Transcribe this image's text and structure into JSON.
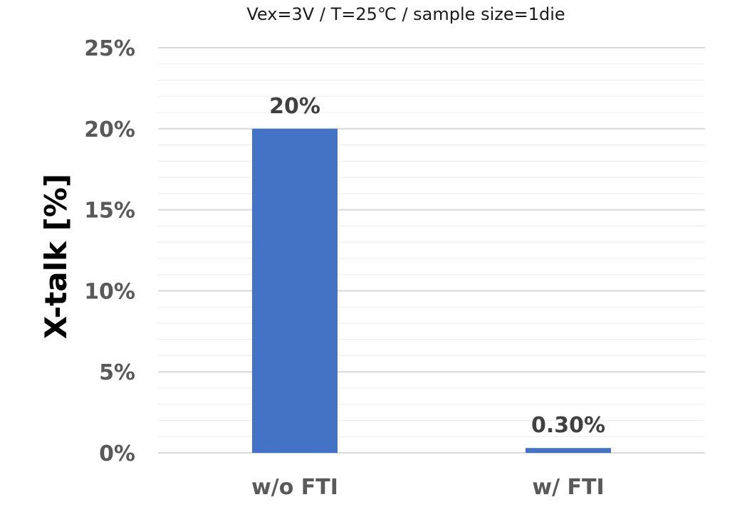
{
  "chart_data": {
    "type": "bar",
    "title": "Vex=3V / T=25℃ / sample size=1die",
    "xlabel": "",
    "ylabel": "X-talk [%]",
    "categories": [
      "w/o FTI",
      "w/ FTI"
    ],
    "values": [
      20,
      0.3
    ],
    "data_labels": [
      "20%",
      "0.30%"
    ],
    "ylim": [
      0,
      25
    ],
    "yticks": [
      0,
      5,
      10,
      15,
      20,
      25
    ],
    "ytick_labels": [
      "0%",
      "5%",
      "10%",
      "15%",
      "20%",
      "25%"
    ],
    "minor_step": 1,
    "grid": true,
    "legend": "none",
    "bar_color": "#4472C4",
    "major_grid_color": "#D9D9D9",
    "minor_grid_color": "#EDEDED"
  }
}
